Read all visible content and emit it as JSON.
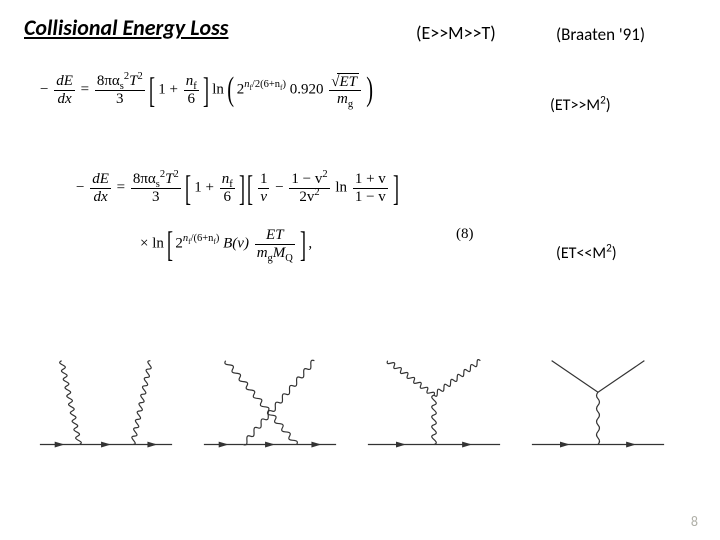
{
  "title": "Collisional Energy Loss",
  "conditions": {
    "header": "(E>>M>>T)",
    "cite": "(Braaten '91)",
    "cond2a": "(ET>>M",
    "cond2b": ")",
    "cond3a": "(ET<<M",
    "cond3b": ")"
  },
  "eq1": {
    "minus": "−",
    "lhs_num": "dE",
    "lhs_den": "dx",
    "eq": " = ",
    "rhs1_num_a": "8πα",
    "rhs1_num_sub": "s",
    "rhs1_num_sup": "2",
    "rhs1_num_b": "T",
    "rhs1_num_sup2": "2",
    "rhs1_den": "3",
    "inner1_a": "1 + ",
    "inner1_num": "n",
    "inner1_num_sub": "f",
    "inner1_den": "6",
    "ln": "ln",
    "exp_a": "2",
    "exp_sup_a": "n",
    "exp_sup_sub": "f",
    "exp_sup_b": "/2(6+n",
    "exp_sup_sub2": "f",
    "exp_sup_c": ")",
    "const": " 0.920 ",
    "sqrt_sym": "√",
    "sqrt_arg": "ET",
    "last_den": "m",
    "last_den_sub": "g"
  },
  "eq2": {
    "minus": "−",
    "lhs_num": "dE",
    "lhs_den": "dx",
    "eq": " = ",
    "rhs1_num_a": "8πα",
    "rhs1_num_sub": "s",
    "rhs1_num_sup": "2",
    "rhs1_num_b": "T",
    "rhs1_num_sup2": "2",
    "rhs1_den": "3",
    "inner1_a": "1 + ",
    "inner1_num": "n",
    "inner1_num_sub": "f",
    "inner1_den": "6",
    "t2_num1": "1",
    "t2_den1": "v",
    "t2_minus": " − ",
    "t2_num2a": "1 − v",
    "t2_num2sup": "2",
    "t2_den2a": "2v",
    "t2_den2sup": "2",
    "ln": " ln ",
    "t2_num3": "1 + v",
    "t2_den3": "1 − v"
  },
  "eq2b": {
    "times": "× ln",
    "exp_a": "2",
    "exp_sup_a": "n",
    "exp_sup_sub": "f",
    "exp_sup_b": "/(6+n",
    "exp_sup_sub2": "f",
    "exp_sup_c": ")",
    "B": " B(v) ",
    "frac_num": "ET",
    "frac_den_a": "m",
    "frac_den_sub1": "g",
    "frac_den_b": "M",
    "frac_den_sub2": "Q",
    "comma": " ,"
  },
  "eqnum": "(8)",
  "pagenum": "8",
  "feynman": {
    "stroke": "#333333",
    "gluon_coils": 10
  }
}
